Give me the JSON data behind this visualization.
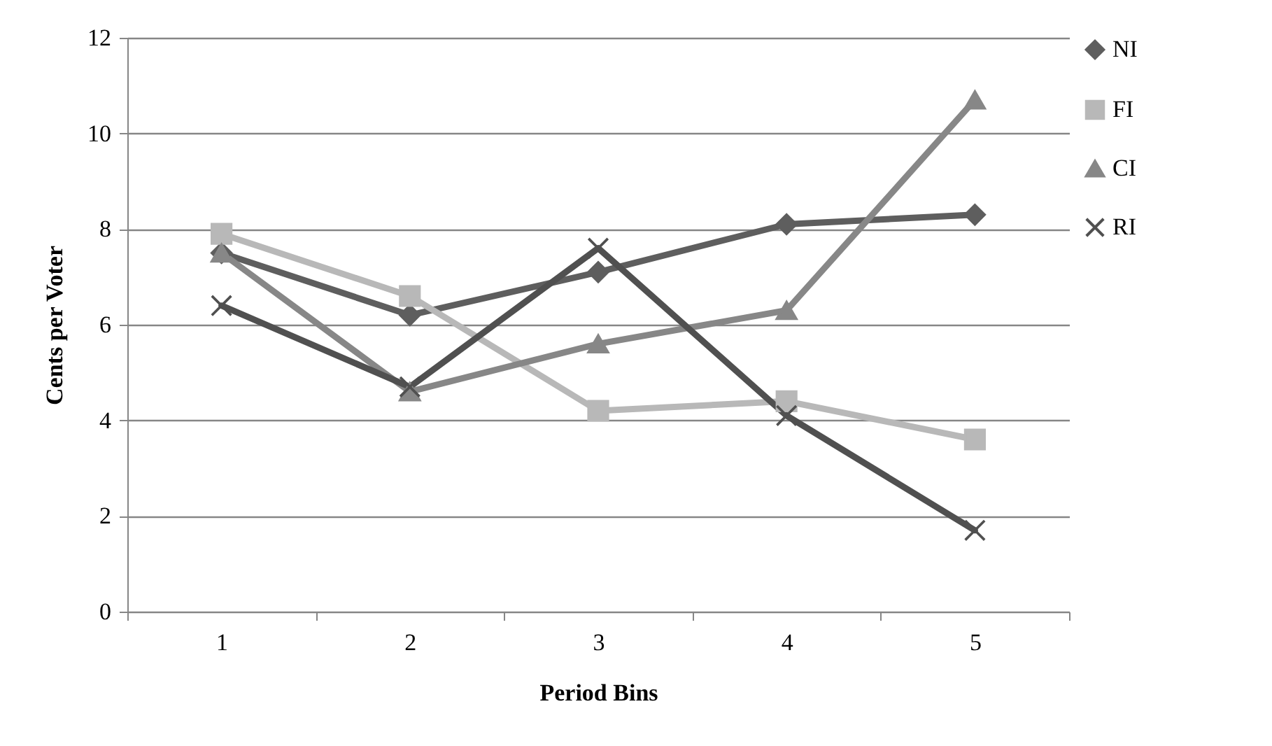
{
  "chart_data": {
    "type": "line",
    "xlabel": "Period Bins",
    "ylabel": "Cents per Voter",
    "categories": [
      "1",
      "2",
      "3",
      "4",
      "5"
    ],
    "ylim": [
      0,
      12
    ],
    "yticks": [
      0,
      2,
      4,
      6,
      8,
      10,
      12
    ],
    "grid": "y",
    "legend": "right",
    "line_style": "solid",
    "series": [
      {
        "name": "NI",
        "color": "#5e5e5e",
        "marker": "diamond",
        "values": [
          7.5,
          6.2,
          7.1,
          8.1,
          8.3
        ]
      },
      {
        "name": "FI",
        "color": "#b8b8b8",
        "marker": "square",
        "values": [
          7.9,
          6.6,
          4.2,
          4.4,
          3.6
        ]
      },
      {
        "name": "CI",
        "color": "#878787",
        "marker": "triangle",
        "values": [
          7.5,
          4.6,
          5.6,
          6.3,
          10.7
        ]
      },
      {
        "name": "RI",
        "color": "#505050",
        "marker": "cross",
        "values": [
          6.4,
          4.7,
          7.6,
          4.1,
          1.7
        ]
      }
    ]
  }
}
